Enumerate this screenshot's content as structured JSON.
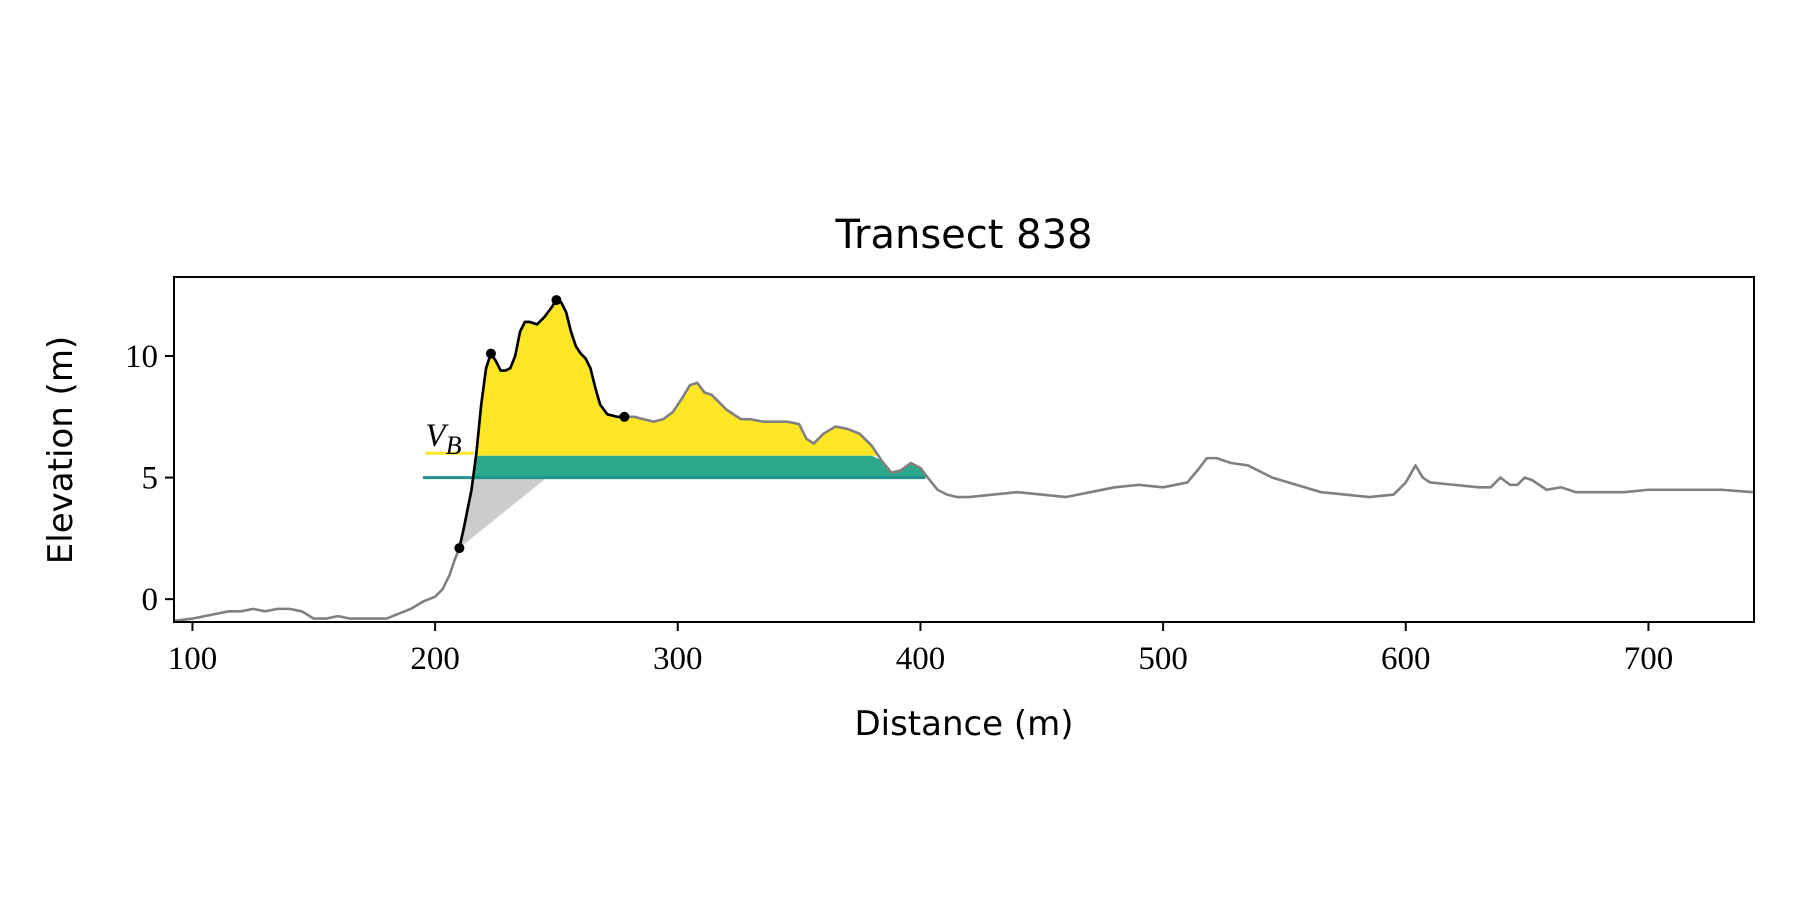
{
  "chart_data": {
    "type": "line",
    "title": "Transect 838",
    "xlabel": "Distance (m)",
    "ylabel": "Elevation (m)",
    "xlim": [
      92.4,
      743.5
    ],
    "ylim": [
      -0.94,
      13.25
    ],
    "xticks": [
      100,
      200,
      300,
      400,
      500,
      600,
      700
    ],
    "yticks": [
      0,
      5,
      10
    ],
    "profile": {
      "color": "#808080",
      "x": [
        92,
        100,
        105,
        110,
        115,
        120,
        125,
        130,
        135,
        140,
        145,
        150,
        155,
        160,
        165,
        170,
        175,
        180,
        185,
        190,
        195,
        200,
        203,
        206,
        208,
        210,
        212,
        215,
        217,
        219,
        221,
        223,
        225,
        227,
        229,
        231,
        233,
        235,
        237,
        239,
        242,
        245,
        248,
        250,
        252,
        254,
        256,
        258,
        260,
        262,
        264,
        266,
        268,
        271,
        275,
        278,
        282,
        286,
        290,
        294,
        298,
        302,
        305,
        308,
        311,
        314,
        317,
        320,
        323,
        326,
        330,
        335,
        340,
        345,
        350,
        353,
        356,
        360,
        365,
        370,
        375,
        380,
        384,
        388,
        392,
        396,
        400,
        403,
        407,
        411,
        415,
        420,
        430,
        440,
        450,
        460,
        470,
        480,
        490,
        500,
        510,
        515,
        518,
        522,
        528,
        535,
        545,
        555,
        565,
        575,
        585,
        595,
        600,
        604,
        607,
        610,
        620,
        630,
        635,
        639,
        643,
        646,
        649,
        652,
        658,
        664,
        670,
        680,
        690,
        700,
        710,
        720,
        730,
        743
      ],
      "y": [
        -0.9,
        -0.8,
        -0.7,
        -0.6,
        -0.5,
        -0.5,
        -0.4,
        -0.5,
        -0.4,
        -0.4,
        -0.5,
        -0.8,
        -0.8,
        -0.7,
        -0.8,
        -0.8,
        -0.8,
        -0.8,
        -0.6,
        -0.4,
        -0.1,
        0.1,
        0.4,
        1.0,
        1.6,
        2.1,
        3.0,
        4.5,
        6.0,
        8.0,
        9.5,
        10.1,
        9.8,
        9.4,
        9.4,
        9.5,
        10.0,
        11.0,
        11.4,
        11.4,
        11.3,
        11.6,
        12.0,
        12.3,
        12.2,
        11.8,
        11.0,
        10.4,
        10.1,
        9.9,
        9.5,
        8.7,
        8.0,
        7.6,
        7.5,
        7.5,
        7.5,
        7.4,
        7.3,
        7.4,
        7.7,
        8.3,
        8.8,
        8.9,
        8.5,
        8.4,
        8.1,
        7.8,
        7.6,
        7.4,
        7.4,
        7.3,
        7.3,
        7.3,
        7.2,
        6.6,
        6.4,
        6.8,
        7.1,
        7.0,
        6.8,
        6.3,
        5.7,
        5.2,
        5.3,
        5.6,
        5.4,
        5.0,
        4.5,
        4.3,
        4.2,
        4.2,
        4.3,
        4.4,
        4.3,
        4.2,
        4.4,
        4.6,
        4.7,
        4.6,
        4.8,
        5.4,
        5.8,
        5.8,
        5.6,
        5.5,
        5.0,
        4.7,
        4.4,
        4.3,
        4.2,
        4.3,
        4.8,
        5.5,
        5.0,
        4.8,
        4.7,
        4.6,
        4.6,
        5.0,
        4.7,
        4.7,
        5.0,
        4.9,
        4.5,
        4.6,
        4.4,
        4.4,
        4.4,
        4.5,
        4.5,
        4.5,
        4.5,
        4.4
      ]
    },
    "dune": {
      "color": "#000000",
      "x": [
        210,
        212,
        215,
        217,
        219,
        221,
        223,
        225,
        227,
        229,
        231,
        233,
        235,
        237,
        239,
        242,
        245,
        248,
        250,
        252,
        254,
        256,
        258,
        260,
        262,
        264,
        266,
        268,
        271,
        275,
        278
      ],
      "y": [
        2.1,
        3.0,
        4.5,
        6.0,
        8.0,
        9.5,
        10.1,
        9.8,
        9.4,
        9.4,
        9.5,
        10.0,
        11.0,
        11.4,
        11.4,
        11.3,
        11.6,
        12.0,
        12.3,
        12.2,
        11.8,
        11.0,
        10.4,
        10.1,
        9.9,
        9.5,
        8.7,
        8.0,
        7.6,
        7.5,
        7.5
      ]
    },
    "points": {
      "color": "#000000",
      "x": [
        210,
        223,
        250,
        278
      ],
      "y": [
        2.1,
        10.1,
        12.3,
        7.5
      ]
    },
    "upper_fill": {
      "level": 5.9,
      "color": "#fde725"
    },
    "lower_fill": {
      "level": 5.0,
      "color": "#2ba889"
    },
    "toe_wedge": {
      "color": "#cccccc",
      "end_x": 246,
      "end_y": 5.0
    },
    "level_lines": [
      {
        "y": 6.0,
        "x": [
          196,
          216
        ],
        "color": "#fde725"
      },
      {
        "y": 5.0,
        "x": [
          195,
          402
        ],
        "color": "#21918c"
      }
    ],
    "annotation": {
      "text": "V",
      "subscript": "B",
      "x": 196,
      "y": 6.3
    }
  }
}
